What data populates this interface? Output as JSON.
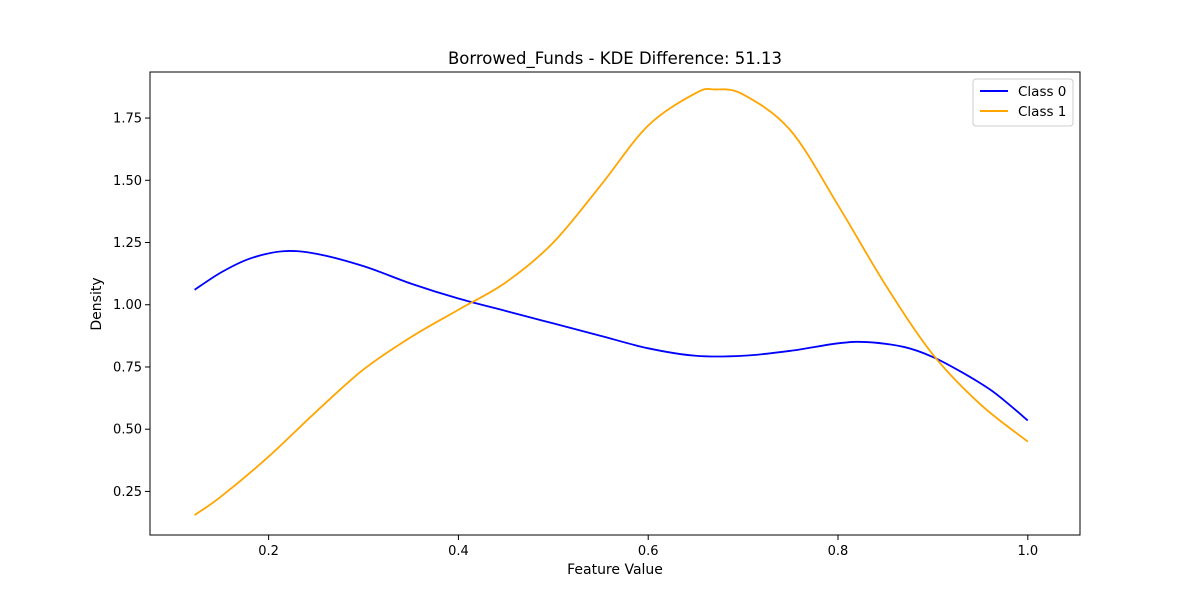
{
  "chart_data": {
    "type": "line",
    "title": "Borrowed_Funds - KDE Difference: 51.13",
    "xlabel": "Feature Value",
    "ylabel": "Density",
    "xlim": [
      0.075,
      1.055
    ],
    "ylim": [
      0.075,
      1.935
    ],
    "xticks": [
      {
        "value": 0.2,
        "label": "0.2"
      },
      {
        "value": 0.4,
        "label": "0.4"
      },
      {
        "value": 0.6,
        "label": "0.6"
      },
      {
        "value": 0.8,
        "label": "0.8"
      },
      {
        "value": 1.0,
        "label": "1.0"
      }
    ],
    "yticks": [
      {
        "value": 0.25,
        "label": "0.25"
      },
      {
        "value": 0.5,
        "label": "0.50"
      },
      {
        "value": 0.75,
        "label": "0.75"
      },
      {
        "value": 1.0,
        "label": "1.00"
      },
      {
        "value": 1.25,
        "label": "1.25"
      },
      {
        "value": 1.5,
        "label": "1.50"
      },
      {
        "value": 1.75,
        "label": "1.75"
      }
    ],
    "grid": false,
    "legend_position": "top-right",
    "series": [
      {
        "name": "Class 0",
        "color": "#0000ff",
        "points": [
          [
            0.122,
            1.06
          ],
          [
            0.15,
            1.13
          ],
          [
            0.18,
            1.185
          ],
          [
            0.215,
            1.215
          ],
          [
            0.25,
            1.205
          ],
          [
            0.3,
            1.155
          ],
          [
            0.35,
            1.085
          ],
          [
            0.4,
            1.025
          ],
          [
            0.45,
            0.975
          ],
          [
            0.5,
            0.925
          ],
          [
            0.55,
            0.875
          ],
          [
            0.6,
            0.825
          ],
          [
            0.65,
            0.795
          ],
          [
            0.7,
            0.795
          ],
          [
            0.75,
            0.815
          ],
          [
            0.8,
            0.845
          ],
          [
            0.83,
            0.85
          ],
          [
            0.87,
            0.83
          ],
          [
            0.9,
            0.79
          ],
          [
            0.93,
            0.73
          ],
          [
            0.96,
            0.66
          ],
          [
            0.98,
            0.6
          ],
          [
            1.0,
            0.535
          ]
        ]
      },
      {
        "name": "Class 1",
        "color": "#ffa500",
        "points": [
          [
            0.122,
            0.155
          ],
          [
            0.15,
            0.23
          ],
          [
            0.2,
            0.39
          ],
          [
            0.25,
            0.57
          ],
          [
            0.3,
            0.74
          ],
          [
            0.35,
            0.87
          ],
          [
            0.4,
            0.98
          ],
          [
            0.45,
            1.09
          ],
          [
            0.5,
            1.25
          ],
          [
            0.55,
            1.48
          ],
          [
            0.6,
            1.72
          ],
          [
            0.65,
            1.85
          ],
          [
            0.67,
            1.865
          ],
          [
            0.7,
            1.845
          ],
          [
            0.75,
            1.7
          ],
          [
            0.8,
            1.4
          ],
          [
            0.85,
            1.08
          ],
          [
            0.9,
            0.8
          ],
          [
            0.95,
            0.6
          ],
          [
            1.0,
            0.45
          ]
        ]
      }
    ]
  }
}
